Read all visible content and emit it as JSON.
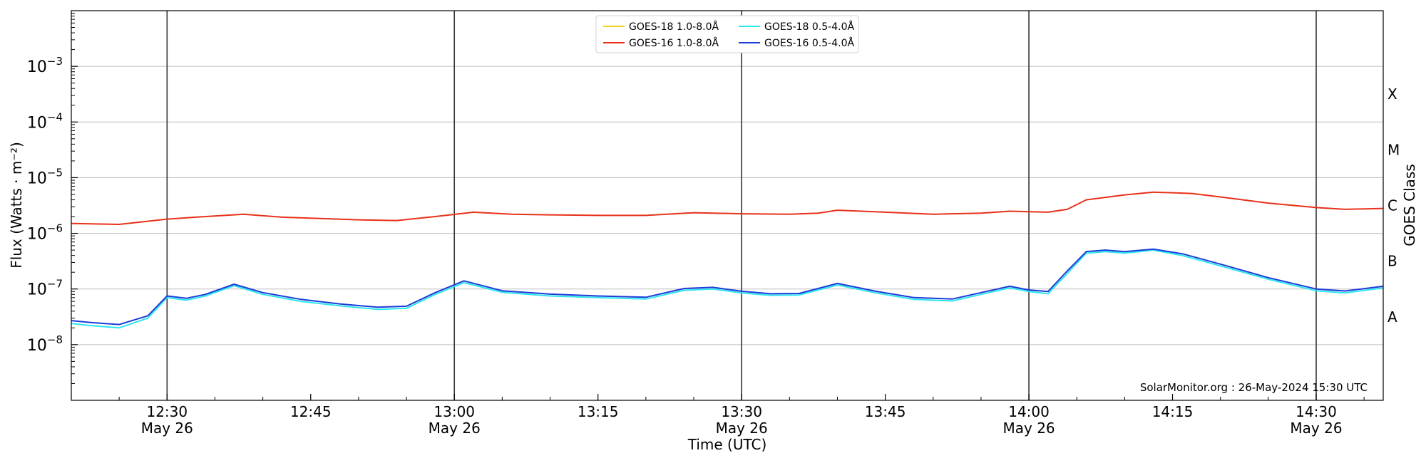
{
  "chart_data": {
    "type": "line",
    "xlabel": "Time (UTC)",
    "ylabel": "Flux (Watts · m⁻²)",
    "y2label": "GOES Class",
    "yscale": "log",
    "ylim": [
      1e-09,
      0.01
    ],
    "xlim_minutes": [
      "12:20",
      "14:37"
    ],
    "grid": "horizontal",
    "legend_position": "top-center",
    "annotation": "SolarMonitor.org : 26-May-2024 15:30 UTC",
    "yticks": [
      {
        "value": 1e-08,
        "label": "10",
        "exp": "−8"
      },
      {
        "value": 1e-07,
        "label": "10",
        "exp": "−7"
      },
      {
        "value": 1e-06,
        "label": "10",
        "exp": "−6"
      },
      {
        "value": 1e-05,
        "label": "10",
        "exp": "−5"
      },
      {
        "value": 0.0001,
        "label": "10",
        "exp": "−4"
      },
      {
        "value": 0.001,
        "label": "10",
        "exp": "−3"
      }
    ],
    "xticks": [
      {
        "time": "12:30",
        "label": "12:30",
        "sub": "May 26"
      },
      {
        "time": "12:45",
        "label": "12:45",
        "sub": ""
      },
      {
        "time": "13:00",
        "label": "13:00",
        "sub": "May 26"
      },
      {
        "time": "13:15",
        "label": "13:15",
        "sub": ""
      },
      {
        "time": "13:30",
        "label": "13:30",
        "sub": "May 26"
      },
      {
        "time": "13:45",
        "label": "13:45",
        "sub": ""
      },
      {
        "time": "14:00",
        "label": "14:00",
        "sub": "May 26"
      },
      {
        "time": "14:15",
        "label": "14:15",
        "sub": ""
      },
      {
        "time": "14:30",
        "label": "14:30",
        "sub": "May 26"
      }
    ],
    "vlines": [
      "12:30",
      "13:00",
      "13:30",
      "14:00",
      "14:30"
    ],
    "classes": [
      {
        "label": "A",
        "value": 3.16e-08
      },
      {
        "label": "B",
        "value": 3.16e-07
      },
      {
        "label": "C",
        "value": 3.16e-06
      },
      {
        "label": "M",
        "value": 3.16e-05
      },
      {
        "label": "X",
        "value": 0.000316
      }
    ],
    "series": [
      {
        "name": "GOES-18 1.0-8.0Å",
        "color": "#f2d21a",
        "draw": false,
        "x": [],
        "y": []
      },
      {
        "name": "GOES-16 1.0-8.0Å",
        "color": "#e8311a",
        "draw": true,
        "x": [
          "12:20",
          "12:25",
          "12:30",
          "12:33",
          "12:38",
          "12:42",
          "12:46",
          "12:50",
          "12:54",
          "12:58",
          "13:02",
          "13:06",
          "13:10",
          "13:15",
          "13:20",
          "13:25",
          "13:30",
          "13:35",
          "13:38",
          "13:40",
          "13:45",
          "13:50",
          "13:55",
          "13:58",
          "14:02",
          "14:04",
          "14:06",
          "14:10",
          "14:13",
          "14:17",
          "14:20",
          "14:25",
          "14:30",
          "14:33",
          "14:37"
        ],
        "y": [
          1.5e-06,
          1.45e-06,
          1.8e-06,
          1.95e-06,
          2.2e-06,
          1.95e-06,
          1.85e-06,
          1.75e-06,
          1.7e-06,
          2e-06,
          2.4e-06,
          2.2e-06,
          2.15e-06,
          2.1e-06,
          2.1e-06,
          2.35e-06,
          2.25e-06,
          2.2e-06,
          2.3e-06,
          2.6e-06,
          2.4e-06,
          2.2e-06,
          2.3e-06,
          2.5e-06,
          2.4e-06,
          2.7e-06,
          4e-06,
          4.9e-06,
          5.5e-06,
          5.2e-06,
          4.5e-06,
          3.5e-06,
          2.9e-06,
          2.7e-06,
          2.8e-06
        ]
      },
      {
        "name": "GOES-18 0.5-4.0Å",
        "color": "#2ee6ee",
        "draw": true,
        "x": [
          "12:20",
          "12:22",
          "12:25",
          "12:28",
          "12:30",
          "12:32",
          "12:34",
          "12:37",
          "12:40",
          "12:44",
          "12:48",
          "12:52",
          "12:55",
          "12:58",
          "13:01",
          "13:05",
          "13:10",
          "13:15",
          "13:20",
          "13:24",
          "13:27",
          "13:30",
          "13:33",
          "13:36",
          "13:40",
          "13:44",
          "13:48",
          "13:52",
          "13:55",
          "13:58",
          "14:00",
          "14:02",
          "14:04",
          "14:06",
          "14:08",
          "14:10",
          "14:13",
          "14:16",
          "14:20",
          "14:25",
          "14:30",
          "14:33",
          "14:37"
        ],
        "y": [
          2.4e-08,
          2.2e-08,
          2e-08,
          3e-08,
          7e-08,
          6.3e-08,
          7.5e-08,
          1.15e-07,
          8e-08,
          6e-08,
          5e-08,
          4.3e-08,
          4.5e-08,
          8e-08,
          1.3e-07,
          8.7e-08,
          7.5e-08,
          7e-08,
          6.6e-08,
          9.5e-08,
          1e-07,
          8.5e-08,
          7.7e-08,
          7.8e-08,
          1.18e-07,
          8.5e-08,
          6.5e-08,
          6.1e-08,
          8e-08,
          1.05e-07,
          9e-08,
          8.2e-08,
          1.9e-07,
          4.4e-07,
          4.7e-07,
          4.4e-07,
          5e-07,
          4e-07,
          2.6e-07,
          1.5e-07,
          9.3e-08,
          8.5e-08,
          1.05e-07
        ]
      },
      {
        "name": "GOES-16 0.5-4.0Å",
        "color": "#1c3cd8",
        "draw": true,
        "x": [
          "12:20",
          "12:22",
          "12:25",
          "12:28",
          "12:30",
          "12:32",
          "12:34",
          "12:37",
          "12:40",
          "12:44",
          "12:48",
          "12:52",
          "12:55",
          "12:58",
          "13:01",
          "13:05",
          "13:10",
          "13:15",
          "13:20",
          "13:24",
          "13:27",
          "13:30",
          "13:33",
          "13:36",
          "13:40",
          "13:44",
          "13:48",
          "13:52",
          "13:55",
          "13:58",
          "14:00",
          "14:02",
          "14:04",
          "14:06",
          "14:08",
          "14:10",
          "14:13",
          "14:16",
          "14:20",
          "14:25",
          "14:30",
          "14:33",
          "14:37"
        ],
        "y": [
          2.7e-08,
          2.5e-08,
          2.3e-08,
          3.3e-08,
          7.5e-08,
          6.8e-08,
          8e-08,
          1.22e-07,
          8.6e-08,
          6.5e-08,
          5.4e-08,
          4.7e-08,
          4.9e-08,
          8.6e-08,
          1.4e-07,
          9.3e-08,
          8.1e-08,
          7.5e-08,
          7.1e-08,
          1.02e-07,
          1.07e-07,
          9.1e-08,
          8.2e-08,
          8.3e-08,
          1.26e-07,
          9.1e-08,
          7e-08,
          6.6e-08,
          8.6e-08,
          1.12e-07,
          9.6e-08,
          9e-08,
          2.1e-07,
          4.7e-07,
          5e-07,
          4.7e-07,
          5.2e-07,
          4.3e-07,
          2.8e-07,
          1.6e-07,
          1e-07,
          9.2e-08,
          1.12e-07
        ]
      }
    ]
  }
}
